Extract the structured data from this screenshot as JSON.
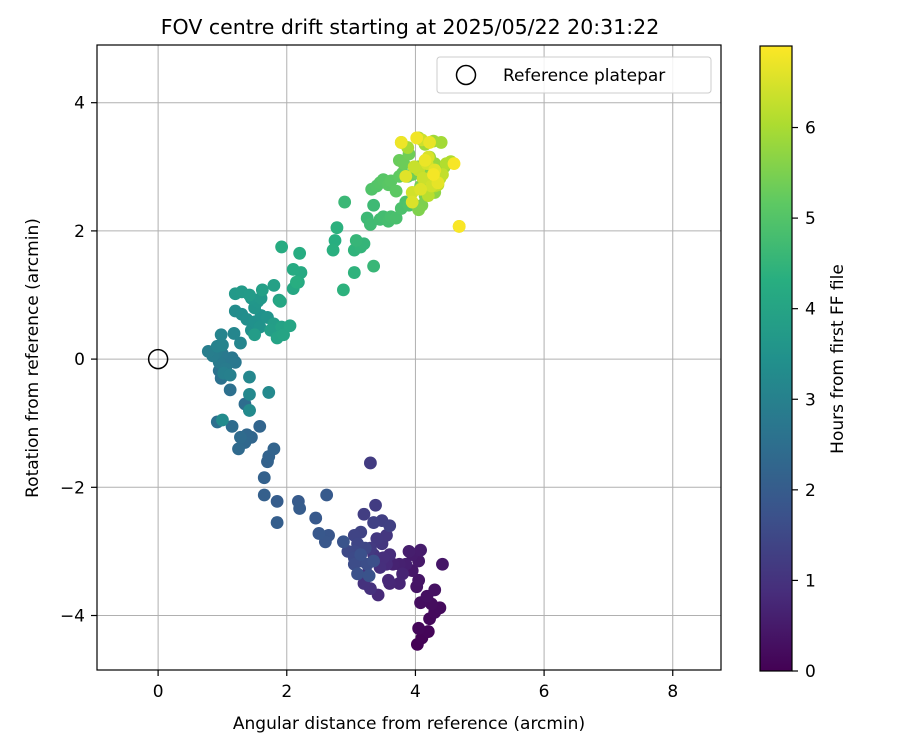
{
  "chart_data": {
    "type": "scatter",
    "title": "FOV centre drift starting at 2025/05/22 20:31:22",
    "xlabel": "Angular distance from reference (arcmin)",
    "ylabel": "Rotation from reference (arcmin)",
    "xlim": [
      -0.95,
      8.75
    ],
    "ylim": [
      -4.85,
      4.9
    ],
    "xticks": [
      0,
      2,
      4,
      6,
      8
    ],
    "yticks": [
      -4,
      -2,
      0,
      2,
      4
    ],
    "x_tick_labels": [
      "0",
      "2",
      "4",
      "6",
      "8"
    ],
    "y_tick_labels": [
      "−4",
      "−2",
      "0",
      "2",
      "4"
    ],
    "grid": true,
    "legend": {
      "position": "top-right",
      "label": "Reference platepar",
      "marker": "open-circle"
    },
    "reference_point": {
      "x": 0,
      "y": 0
    },
    "colorbar": {
      "label": "Hours from first FF file",
      "colormap": "viridis",
      "range": [
        0,
        6.9
      ],
      "ticks": [
        0,
        1,
        2,
        3,
        4,
        5,
        6
      ],
      "tick_labels": [
        "0",
        "1",
        "2",
        "3",
        "4",
        "5",
        "6"
      ]
    },
    "points": [
      {
        "x": 4.03,
        "y": -4.45,
        "t": 0.02
      },
      {
        "x": 4.1,
        "y": -4.35,
        "t": 0.05
      },
      {
        "x": 4.2,
        "y": -4.25,
        "t": 0.08
      },
      {
        "x": 4.05,
        "y": -4.2,
        "t": 0.11
      },
      {
        "x": 4.22,
        "y": -4.05,
        "t": 0.14
      },
      {
        "x": 4.3,
        "y": -3.95,
        "t": 0.17
      },
      {
        "x": 4.38,
        "y": -3.88,
        "t": 0.2
      },
      {
        "x": 4.25,
        "y": -3.82,
        "t": 0.23
      },
      {
        "x": 4.08,
        "y": -3.8,
        "t": 0.26
      },
      {
        "x": 4.18,
        "y": -3.7,
        "t": 0.29
      },
      {
        "x": 4.3,
        "y": -3.6,
        "t": 0.32
      },
      {
        "x": 4.02,
        "y": -3.55,
        "t": 0.35
      },
      {
        "x": 4.05,
        "y": -3.45,
        "t": 0.38
      },
      {
        "x": 4.42,
        "y": -3.2,
        "t": 0.41
      },
      {
        "x": 3.95,
        "y": -3.3,
        "t": 0.44
      },
      {
        "x": 4.05,
        "y": -3.15,
        "t": 0.47
      },
      {
        "x": 3.95,
        "y": -3.05,
        "t": 0.5
      },
      {
        "x": 4.08,
        "y": -2.98,
        "t": 0.53
      },
      {
        "x": 3.9,
        "y": -3.0,
        "t": 0.56
      },
      {
        "x": 3.85,
        "y": -3.2,
        "t": 0.59
      },
      {
        "x": 3.75,
        "y": -3.2,
        "t": 0.62
      },
      {
        "x": 3.65,
        "y": -3.2,
        "t": 0.65
      },
      {
        "x": 3.8,
        "y": -3.35,
        "t": 0.68
      },
      {
        "x": 3.75,
        "y": -3.5,
        "t": 0.71
      },
      {
        "x": 3.6,
        "y": -3.5,
        "t": 0.74
      },
      {
        "x": 3.58,
        "y": -3.45,
        "t": 0.77
      },
      {
        "x": 3.42,
        "y": -3.68,
        "t": 0.8
      },
      {
        "x": 3.55,
        "y": -3.2,
        "t": 0.83
      },
      {
        "x": 3.6,
        "y": -3.05,
        "t": 0.86
      },
      {
        "x": 3.5,
        "y": -3.1,
        "t": 0.89
      },
      {
        "x": 3.45,
        "y": -3.25,
        "t": 0.92
      },
      {
        "x": 3.3,
        "y": -3.58,
        "t": 0.95
      },
      {
        "x": 3.2,
        "y": -3.5,
        "t": 0.98
      },
      {
        "x": 3.25,
        "y": -3.35,
        "t": 1.01
      },
      {
        "x": 3.35,
        "y": -3.05,
        "t": 1.04
      },
      {
        "x": 3.48,
        "y": -2.88,
        "t": 1.07
      },
      {
        "x": 3.55,
        "y": -2.75,
        "t": 1.1
      },
      {
        "x": 3.4,
        "y": -2.8,
        "t": 1.13
      },
      {
        "x": 3.3,
        "y": -2.95,
        "t": 1.16
      },
      {
        "x": 3.3,
        "y": -1.62,
        "t": 1.19
      },
      {
        "x": 3.38,
        "y": -2.28,
        "t": 1.22
      },
      {
        "x": 3.2,
        "y": -2.42,
        "t": 1.25
      },
      {
        "x": 3.48,
        "y": -2.52,
        "t": 1.28
      },
      {
        "x": 3.6,
        "y": -2.6,
        "t": 1.31
      },
      {
        "x": 3.35,
        "y": -2.55,
        "t": 1.34
      },
      {
        "x": 3.15,
        "y": -2.7,
        "t": 1.37
      },
      {
        "x": 3.05,
        "y": -2.75,
        "t": 1.4
      },
      {
        "x": 3.1,
        "y": -2.88,
        "t": 1.43
      },
      {
        "x": 3.22,
        "y": -2.95,
        "t": 1.46
      },
      {
        "x": 3.05,
        "y": -3.0,
        "t": 1.49
      },
      {
        "x": 2.95,
        "y": -3.0,
        "t": 1.52
      },
      {
        "x": 3.05,
        "y": -3.1,
        "t": 1.55
      },
      {
        "x": 3.15,
        "y": -3.15,
        "t": 1.58
      },
      {
        "x": 3.05,
        "y": -3.2,
        "t": 1.61
      },
      {
        "x": 3.25,
        "y": -3.2,
        "t": 1.64
      },
      {
        "x": 3.35,
        "y": -3.15,
        "t": 1.67
      },
      {
        "x": 3.15,
        "y": -3.05,
        "t": 1.7
      },
      {
        "x": 3.1,
        "y": -3.35,
        "t": 1.73
      },
      {
        "x": 3.28,
        "y": -3.38,
        "t": 1.76
      },
      {
        "x": 2.88,
        "y": -2.85,
        "t": 1.79
      },
      {
        "x": 2.65,
        "y": -2.75,
        "t": 1.82
      },
      {
        "x": 2.6,
        "y": -2.85,
        "t": 1.85
      },
      {
        "x": 2.5,
        "y": -2.72,
        "t": 1.88
      },
      {
        "x": 2.45,
        "y": -2.48,
        "t": 1.91
      },
      {
        "x": 2.62,
        "y": -2.12,
        "t": 1.94
      },
      {
        "x": 2.18,
        "y": -2.22,
        "t": 1.97
      },
      {
        "x": 2.2,
        "y": -2.33,
        "t": 2.0
      },
      {
        "x": 1.85,
        "y": -2.22,
        "t": 2.03
      },
      {
        "x": 1.85,
        "y": -2.55,
        "t": 2.06
      },
      {
        "x": 1.65,
        "y": -2.12,
        "t": 2.09
      },
      {
        "x": 1.65,
        "y": -1.85,
        "t": 2.12
      },
      {
        "x": 1.7,
        "y": -1.6,
        "t": 2.15
      },
      {
        "x": 1.72,
        "y": -1.52,
        "t": 2.18
      },
      {
        "x": 1.8,
        "y": -1.4,
        "t": 2.21
      },
      {
        "x": 1.58,
        "y": -1.05,
        "t": 2.24
      },
      {
        "x": 1.45,
        "y": -1.22,
        "t": 2.27
      },
      {
        "x": 1.38,
        "y": -1.18,
        "t": 2.3
      },
      {
        "x": 1.35,
        "y": -1.3,
        "t": 2.33
      },
      {
        "x": 1.25,
        "y": -1.4,
        "t": 2.36
      },
      {
        "x": 1.28,
        "y": -1.22,
        "t": 2.39
      },
      {
        "x": 1.15,
        "y": -1.05,
        "t": 2.42
      },
      {
        "x": 1.35,
        "y": -0.7,
        "t": 2.45
      },
      {
        "x": 1.42,
        "y": -0.8,
        "t": 2.48
      },
      {
        "x": 0.92,
        "y": -0.98,
        "t": 2.51
      },
      {
        "x": 1.12,
        "y": -0.48,
        "t": 2.54
      },
      {
        "x": 0.98,
        "y": -0.3,
        "t": 2.57
      },
      {
        "x": 0.95,
        "y": -0.18,
        "t": 2.6
      },
      {
        "x": 1.05,
        "y": -0.1,
        "t": 2.63
      },
      {
        "x": 1.1,
        "y": -0.05,
        "t": 2.66
      },
      {
        "x": 1.15,
        "y": 0.02,
        "t": 2.69
      },
      {
        "x": 1.2,
        "y": -0.05,
        "t": 2.72
      },
      {
        "x": 1.12,
        "y": 0.0,
        "t": 2.75
      },
      {
        "x": 1.0,
        "y": 0.08,
        "t": 2.78
      },
      {
        "x": 0.95,
        "y": -0.05,
        "t": 2.81
      },
      {
        "x": 1.05,
        "y": -0.15,
        "t": 2.84
      },
      {
        "x": 0.9,
        "y": 0.1,
        "t": 2.87
      },
      {
        "x": 0.85,
        "y": 0.05,
        "t": 2.9
      },
      {
        "x": 0.78,
        "y": 0.12,
        "t": 2.93
      },
      {
        "x": 1.02,
        "y": -0.22,
        "t": 2.96
      },
      {
        "x": 1.12,
        "y": -0.25,
        "t": 2.99
      },
      {
        "x": 0.92,
        "y": 0.2,
        "t": 3.02
      },
      {
        "x": 1.0,
        "y": 0.22,
        "t": 3.05
      },
      {
        "x": 0.98,
        "y": 0.38,
        "t": 3.08
      },
      {
        "x": 1.28,
        "y": 0.25,
        "t": 3.11
      },
      {
        "x": 1.18,
        "y": 0.4,
        "t": 3.14
      },
      {
        "x": 1.42,
        "y": -0.28,
        "t": 3.17
      },
      {
        "x": 1.42,
        "y": -0.55,
        "t": 3.2
      },
      {
        "x": 1.72,
        "y": -0.52,
        "t": 3.23
      },
      {
        "x": 1.42,
        "y": -0.8,
        "t": 3.26
      },
      {
        "x": 1.0,
        "y": -0.95,
        "t": 3.29
      },
      {
        "x": 1.2,
        "y": 0.75,
        "t": 3.32
      },
      {
        "x": 1.3,
        "y": 0.7,
        "t": 3.35
      },
      {
        "x": 1.38,
        "y": 0.62,
        "t": 3.38
      },
      {
        "x": 1.45,
        "y": 0.45,
        "t": 3.41
      },
      {
        "x": 1.5,
        "y": 0.58,
        "t": 3.44
      },
      {
        "x": 1.6,
        "y": 0.68,
        "t": 3.47
      },
      {
        "x": 1.58,
        "y": 0.5,
        "t": 3.5
      },
      {
        "x": 1.7,
        "y": 0.65,
        "t": 3.53
      },
      {
        "x": 1.5,
        "y": 0.8,
        "t": 3.56
      },
      {
        "x": 1.55,
        "y": 0.9,
        "t": 3.59
      },
      {
        "x": 1.45,
        "y": 0.95,
        "t": 3.62
      },
      {
        "x": 1.6,
        "y": 0.95,
        "t": 3.65
      },
      {
        "x": 1.2,
        "y": 1.02,
        "t": 3.68
      },
      {
        "x": 1.3,
        "y": 1.05,
        "t": 3.71
      },
      {
        "x": 1.42,
        "y": 1.0,
        "t": 3.74
      },
      {
        "x": 1.5,
        "y": 0.38,
        "t": 3.77
      },
      {
        "x": 1.8,
        "y": 0.55,
        "t": 3.8
      },
      {
        "x": 1.75,
        "y": 0.45,
        "t": 3.83
      },
      {
        "x": 1.62,
        "y": 1.08,
        "t": 3.86
      },
      {
        "x": 1.8,
        "y": 1.15,
        "t": 3.89
      },
      {
        "x": 1.88,
        "y": 0.92,
        "t": 3.92
      },
      {
        "x": 1.92,
        "y": 0.5,
        "t": 3.95
      },
      {
        "x": 1.85,
        "y": 0.33,
        "t": 3.98
      },
      {
        "x": 1.95,
        "y": 0.38,
        "t": 4.01
      },
      {
        "x": 2.05,
        "y": 0.52,
        "t": 4.04
      },
      {
        "x": 1.9,
        "y": 0.9,
        "t": 4.07
      },
      {
        "x": 2.1,
        "y": 1.1,
        "t": 4.1
      },
      {
        "x": 2.18,
        "y": 1.2,
        "t": 4.13
      },
      {
        "x": 2.22,
        "y": 1.35,
        "t": 4.16
      },
      {
        "x": 2.1,
        "y": 1.4,
        "t": 4.19
      },
      {
        "x": 1.92,
        "y": 1.75,
        "t": 4.22
      },
      {
        "x": 2.2,
        "y": 1.65,
        "t": 4.25
      },
      {
        "x": 2.15,
        "y": 1.2,
        "t": 4.28
      },
      {
        "x": 2.75,
        "y": 1.85,
        "t": 4.31
      },
      {
        "x": 2.72,
        "y": 1.7,
        "t": 4.34
      },
      {
        "x": 2.78,
        "y": 2.05,
        "t": 4.37
      },
      {
        "x": 2.88,
        "y": 1.08,
        "t": 4.4
      },
      {
        "x": 3.05,
        "y": 1.35,
        "t": 4.43
      },
      {
        "x": 3.05,
        "y": 1.7,
        "t": 4.46
      },
      {
        "x": 3.15,
        "y": 1.75,
        "t": 4.49
      },
      {
        "x": 3.2,
        "y": 1.8,
        "t": 4.52
      },
      {
        "x": 3.08,
        "y": 1.85,
        "t": 4.55
      },
      {
        "x": 3.35,
        "y": 1.45,
        "t": 4.58
      },
      {
        "x": 2.9,
        "y": 2.45,
        "t": 4.61
      },
      {
        "x": 3.25,
        "y": 2.2,
        "t": 4.64
      },
      {
        "x": 3.35,
        "y": 2.4,
        "t": 4.67
      },
      {
        "x": 3.3,
        "y": 2.1,
        "t": 4.7
      },
      {
        "x": 3.45,
        "y": 2.18,
        "t": 4.73
      },
      {
        "x": 3.5,
        "y": 2.22,
        "t": 4.76
      },
      {
        "x": 3.58,
        "y": 2.15,
        "t": 4.79
      },
      {
        "x": 3.62,
        "y": 2.22,
        "t": 4.82
      },
      {
        "x": 3.7,
        "y": 2.2,
        "t": 4.85
      },
      {
        "x": 3.78,
        "y": 2.35,
        "t": 4.88
      },
      {
        "x": 3.85,
        "y": 2.45,
        "t": 4.91
      },
      {
        "x": 3.9,
        "y": 2.4,
        "t": 4.94
      },
      {
        "x": 3.32,
        "y": 2.65,
        "t": 4.97
      },
      {
        "x": 3.4,
        "y": 2.7,
        "t": 5.0
      },
      {
        "x": 3.45,
        "y": 2.75,
        "t": 5.03
      },
      {
        "x": 3.5,
        "y": 2.8,
        "t": 5.06
      },
      {
        "x": 3.58,
        "y": 2.72,
        "t": 5.09
      },
      {
        "x": 3.62,
        "y": 2.78,
        "t": 5.12
      },
      {
        "x": 3.7,
        "y": 2.62,
        "t": 5.15
      },
      {
        "x": 3.75,
        "y": 2.85,
        "t": 5.18
      },
      {
        "x": 3.8,
        "y": 2.9,
        "t": 5.21
      },
      {
        "x": 3.88,
        "y": 2.85,
        "t": 5.24
      },
      {
        "x": 3.95,
        "y": 2.88,
        "t": 5.27
      },
      {
        "x": 3.75,
        "y": 3.1,
        "t": 5.3
      },
      {
        "x": 3.82,
        "y": 3.05,
        "t": 5.33
      },
      {
        "x": 3.9,
        "y": 3.2,
        "t": 5.36
      },
      {
        "x": 4.02,
        "y": 2.9,
        "t": 5.39
      },
      {
        "x": 4.05,
        "y": 3.0,
        "t": 5.42
      },
      {
        "x": 4.08,
        "y": 2.7,
        "t": 5.45
      },
      {
        "x": 4.15,
        "y": 2.55,
        "t": 5.48
      },
      {
        "x": 4.1,
        "y": 2.4,
        "t": 5.51
      },
      {
        "x": 4.05,
        "y": 2.33,
        "t": 5.54
      },
      {
        "x": 4.15,
        "y": 2.85,
        "t": 5.57
      },
      {
        "x": 4.2,
        "y": 2.95,
        "t": 5.6
      },
      {
        "x": 4.25,
        "y": 2.8,
        "t": 5.63
      },
      {
        "x": 4.32,
        "y": 2.75,
        "t": 5.66
      },
      {
        "x": 4.3,
        "y": 2.6,
        "t": 5.69
      },
      {
        "x": 4.35,
        "y": 2.85,
        "t": 5.72
      },
      {
        "x": 4.4,
        "y": 2.9,
        "t": 5.75
      },
      {
        "x": 4.45,
        "y": 3.0,
        "t": 5.78
      },
      {
        "x": 4.3,
        "y": 3.05,
        "t": 5.81
      },
      {
        "x": 4.22,
        "y": 3.15,
        "t": 5.84
      },
      {
        "x": 4.15,
        "y": 3.35,
        "t": 5.87
      },
      {
        "x": 4.28,
        "y": 3.4,
        "t": 5.9
      },
      {
        "x": 4.4,
        "y": 3.38,
        "t": 5.93
      },
      {
        "x": 4.05,
        "y": 3.45,
        "t": 5.96
      },
      {
        "x": 3.88,
        "y": 3.3,
        "t": 5.99
      },
      {
        "x": 3.78,
        "y": 3.38,
        "t": 6.02
      },
      {
        "x": 4.55,
        "y": 3.08,
        "t": 6.05
      },
      {
        "x": 4.48,
        "y": 3.05,
        "t": 6.08
      },
      {
        "x": 4.38,
        "y": 2.82,
        "t": 6.11
      },
      {
        "x": 4.3,
        "y": 2.7,
        "t": 6.14
      },
      {
        "x": 4.2,
        "y": 2.55,
        "t": 6.17
      },
      {
        "x": 4.68,
        "y": 2.07,
        "t": 6.2
      },
      {
        "x": 4.35,
        "y": 2.72,
        "t": 6.23
      },
      {
        "x": 4.42,
        "y": 2.88,
        "t": 6.26
      },
      {
        "x": 4.05,
        "y": 2.95,
        "t": 6.29
      },
      {
        "x": 3.98,
        "y": 3.0,
        "t": 6.32
      },
      {
        "x": 4.12,
        "y": 2.82,
        "t": 6.35
      },
      {
        "x": 4.1,
        "y": 3.42,
        "t": 6.38
      },
      {
        "x": 4.25,
        "y": 2.7,
        "t": 6.41
      },
      {
        "x": 3.95,
        "y": 2.6,
        "t": 6.44
      },
      {
        "x": 4.18,
        "y": 3.05,
        "t": 6.47
      },
      {
        "x": 4.2,
        "y": 3.15,
        "t": 6.5
      },
      {
        "x": 3.95,
        "y": 2.45,
        "t": 6.53
      },
      {
        "x": 4.08,
        "y": 2.65,
        "t": 6.56
      },
      {
        "x": 3.85,
        "y": 2.85,
        "t": 6.59
      },
      {
        "x": 4.3,
        "y": 2.95,
        "t": 6.62
      },
      {
        "x": 4.35,
        "y": 2.75,
        "t": 6.65
      },
      {
        "x": 4.22,
        "y": 3.38,
        "t": 6.68
      },
      {
        "x": 4.15,
        "y": 3.1,
        "t": 6.71
      },
      {
        "x": 3.78,
        "y": 3.38,
        "t": 6.74
      },
      {
        "x": 4.02,
        "y": 3.45,
        "t": 6.77
      },
      {
        "x": 4.28,
        "y": 2.88,
        "t": 6.8
      },
      {
        "x": 4.6,
        "y": 3.05,
        "t": 6.83
      },
      {
        "x": 4.68,
        "y": 2.07,
        "t": 6.86
      }
    ]
  }
}
